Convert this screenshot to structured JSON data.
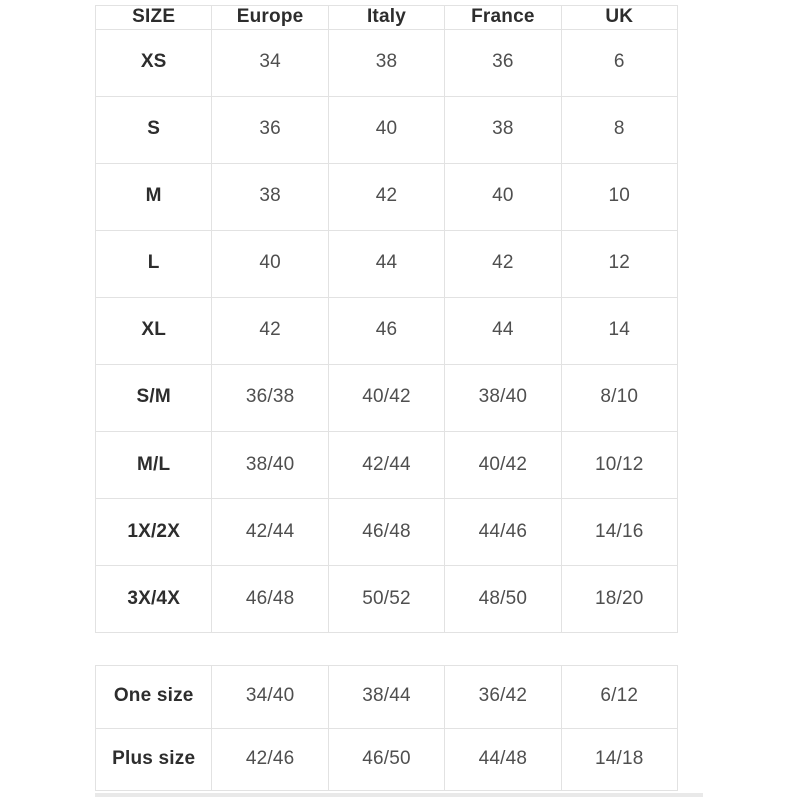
{
  "colors": {
    "page_bg": "#ffffff",
    "table_border": "#e2e2e2",
    "header_text": "#2d2d2d",
    "label_text": "#2d2d2d",
    "value_text": "#4f4f4f",
    "shadow_bar": "#e9e9e9"
  },
  "size_table": {
    "columns": [
      "SIZE",
      "Europe",
      "Italy",
      "France",
      "UK"
    ],
    "rows": [
      {
        "label": "XS",
        "values": [
          "34",
          "38",
          "36",
          "6"
        ]
      },
      {
        "label": "S",
        "values": [
          "36",
          "40",
          "38",
          "8"
        ]
      },
      {
        "label": "M",
        "values": [
          "38",
          "42",
          "40",
          "10"
        ]
      },
      {
        "label": "L",
        "values": [
          "40",
          "44",
          "42",
          "12"
        ]
      },
      {
        "label": "XL",
        "values": [
          "42",
          "46",
          "44",
          "14"
        ]
      },
      {
        "label": "S/M",
        "values": [
          "36/38",
          "40/42",
          "38/40",
          "8/10"
        ]
      },
      {
        "label": "M/L",
        "values": [
          "38/40",
          "42/44",
          "40/42",
          "10/12"
        ]
      },
      {
        "label": "1X/2X",
        "values": [
          "42/44",
          "46/48",
          "44/46",
          "14/16"
        ]
      },
      {
        "label": "3X/4X",
        "values": [
          "46/48",
          "50/52",
          "48/50",
          "18/20"
        ]
      }
    ]
  },
  "special_table": {
    "rows": [
      {
        "label": "One size",
        "values": [
          "34/40",
          "38/44",
          "36/42",
          "6/12"
        ]
      },
      {
        "label": "Plus size",
        "values": [
          "42/46",
          "46/50",
          "44/48",
          "14/18"
        ]
      }
    ]
  }
}
